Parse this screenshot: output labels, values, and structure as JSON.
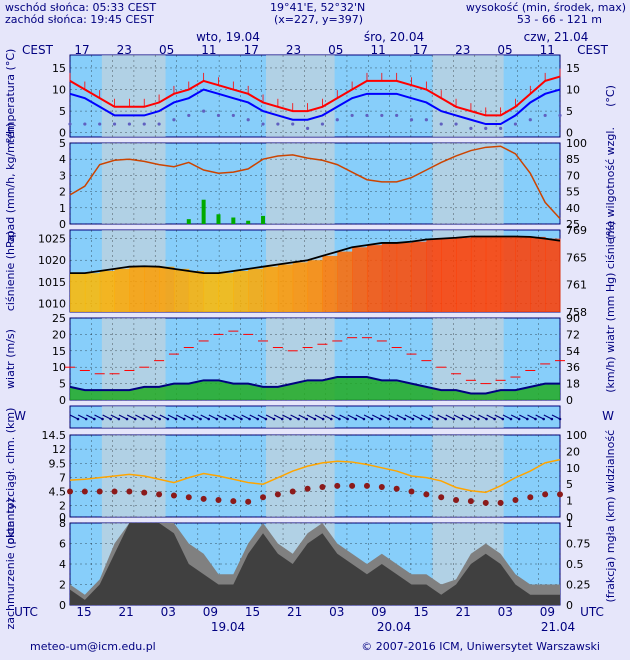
{
  "header": {
    "sunrise": "wschód słońca: 05:33 CEST",
    "sunset": "zachód słońca: 19:45 CEST",
    "coords": "19°41'E, 52°32'N",
    "grid": "(x=227, y=397)",
    "elev_title": "wysokość (min, środek, max)",
    "elev_values": "53 - 66 - 121 m"
  },
  "footer": {
    "email": "meteo-um@icm.edu.pl",
    "copyright": "© 2007-2016 ICM, Uniwersytet Warszawski"
  },
  "top_axis": {
    "tz": "CEST",
    "hours": [
      "17",
      "23",
      "05",
      "11",
      "17",
      "23",
      "05",
      "11",
      "17",
      "23",
      "05",
      "11"
    ],
    "days": [
      "wto, 19.04",
      "śro, 20.04",
      "czw, 21.04"
    ]
  },
  "bottom_axis": {
    "tz": "UTC",
    "hours": [
      "15",
      "21",
      "03",
      "09",
      "15",
      "21",
      "03",
      "09",
      "15",
      "21",
      "03",
      "09"
    ],
    "days": [
      "19.04",
      "20.04",
      "21.04"
    ]
  },
  "colors": {
    "panel_bg": "#87cefa",
    "night_band": "#d3d3d3",
    "axis_text": "#000080",
    "temp": "#ff0000",
    "dewpoint": "#0000ff",
    "humidity": "#cc4400",
    "precip": "#00aa00",
    "pressure": "#000000",
    "wind_avg": "#000080",
    "wind_gust": "#ff0000",
    "cloud": "#404040"
  },
  "chart_data": [
    {
      "id": "temperature",
      "type": "line",
      "ylabel_left": "temperatura (°C)",
      "ylabel_right": "(°C)",
      "yticks": [
        0,
        5,
        10,
        15
      ],
      "ylim": [
        -1,
        18
      ],
      "series": [
        {
          "values": [
            12,
            10,
            8,
            6,
            6,
            6,
            7,
            9,
            10,
            12,
            11,
            10,
            9,
            7,
            6,
            5,
            5,
            6,
            8,
            10,
            12,
            12,
            12,
            11,
            10,
            8,
            6,
            5,
            4,
            4,
            6,
            9,
            12,
            13
          ]
        },
        {
          "values": [
            9,
            8,
            6,
            4,
            4,
            4,
            5,
            7,
            8,
            10,
            9,
            8,
            7,
            5,
            4,
            3,
            3,
            4,
            6,
            8,
            9,
            9,
            9,
            8,
            7,
            5,
            4,
            3,
            2,
            2,
            4,
            7,
            9,
            10
          ]
        },
        {
          "values": [
            2,
            2,
            2,
            2,
            2,
            2,
            2,
            3,
            4,
            5,
            4,
            4,
            3,
            2,
            2,
            2,
            1,
            2,
            3,
            4,
            4,
            4,
            4,
            3,
            3,
            2,
            2,
            1,
            1,
            1,
            2,
            3,
            4,
            4
          ]
        }
      ]
    },
    {
      "id": "precipitation",
      "type": "bar",
      "ylabel_left": "opad (mm/h, kg/m²/h)",
      "ylabel_right": "(%) wilgotność wzgl.",
      "yticks": [
        0,
        1,
        2,
        3,
        4,
        5
      ],
      "yticks_right": [
        25,
        40,
        55,
        70,
        85,
        100
      ],
      "ylim": [
        0,
        5
      ],
      "series": [
        {
          "values": [
            0,
            0,
            0,
            0,
            0,
            0,
            0,
            0,
            0.3,
            1.5,
            0.6,
            0.4,
            0.2,
            0.5,
            0,
            0,
            0,
            0,
            0,
            0,
            0,
            0,
            0,
            0,
            0,
            0,
            0,
            0,
            0,
            0,
            0,
            0,
            0,
            0
          ]
        },
        {
          "values": [
            52,
            60,
            80,
            84,
            85,
            83,
            80,
            78,
            82,
            75,
            72,
            73,
            76,
            85,
            88,
            89,
            86,
            84,
            80,
            73,
            66,
            64,
            64,
            68,
            75,
            82,
            88,
            93,
            96,
            97,
            90,
            72,
            45,
            30
          ]
        }
      ]
    },
    {
      "id": "pressure",
      "type": "line",
      "ylabel_left": "ciśnienie (hPa)",
      "ylabel_right": "(mm Hg) ciśnienie",
      "yticks": [
        1010,
        1015,
        1020,
        1025
      ],
      "yticks_right": [
        758,
        761,
        765,
        769
      ],
      "ylim": [
        1008,
        1027
      ],
      "series": [
        {
          "values": [
            1017,
            1017,
            1017.5,
            1018,
            1018.5,
            1018.6,
            1018.5,
            1018,
            1017.5,
            1017,
            1017,
            1017.5,
            1018,
            1018.5,
            1019,
            1019.5,
            1020,
            1021,
            1022,
            1023,
            1023.5,
            1024,
            1024,
            1024.3,
            1024.8,
            1025,
            1025.2,
            1025.5,
            1025.5,
            1025.5,
            1025.5,
            1025.4,
            1025,
            1024.5
          ]
        }
      ]
    },
    {
      "id": "wind",
      "type": "area",
      "ylabel_left": "wiatr (m/s)",
      "ylabel_right": "(km/h) wiatr",
      "yticks": [
        0,
        5,
        10,
        15,
        20,
        25
      ],
      "yticks_right": [
        0,
        18,
        36,
        54,
        72,
        90
      ],
      "ylim": [
        0,
        25
      ],
      "series": [
        {
          "values": [
            4,
            3,
            3,
            3,
            3,
            4,
            4,
            5,
            5,
            6,
            6,
            5,
            5,
            4,
            4,
            5,
            6,
            6,
            7,
            7,
            7,
            6,
            6,
            5,
            4,
            3,
            3,
            2,
            2,
            3,
            3,
            4,
            5,
            5
          ]
        },
        {
          "values": [
            10,
            9,
            8,
            8,
            9,
            10,
            12,
            14,
            16,
            18,
            20,
            21,
            20,
            18,
            16,
            15,
            16,
            17,
            18,
            19,
            19,
            18,
            16,
            14,
            12,
            10,
            8,
            6,
            5,
            6,
            7,
            9,
            11,
            12
          ]
        }
      ]
    },
    {
      "id": "wind_direction",
      "type": "line",
      "ylabel_left": "W S N E",
      "ylabel_right": "W S N E"
    },
    {
      "id": "visibility",
      "type": "scatter",
      "ylabel_left": "pion. rozciągł. chm. (km)",
      "ylabel_right": "(km) widzialność",
      "yticks": [
        0,
        2.0,
        4.5,
        7.0,
        9.5,
        12.0,
        14.5
      ],
      "yticks_right": [
        0,
        1,
        5,
        10,
        20,
        100
      ],
      "ylim": [
        0,
        14.5
      ],
      "series": [
        {
          "values": [
            4.5,
            4.5,
            4.5,
            4.5,
            4.5,
            4.3,
            4.0,
            3.8,
            3.5,
            3.2,
            3.0,
            2.8,
            2.7,
            3.5,
            4.0,
            4.5,
            5.0,
            5.3,
            5.5,
            5.5,
            5.5,
            5.3,
            5.0,
            4.5,
            4.0,
            3.5,
            3.0,
            2.8,
            2.5,
            2.5,
            3.0,
            3.5,
            4.0,
            4.0
          ]
        },
        {
          "values": [
            4.5,
            4.6,
            4.8,
            5.0,
            5.2,
            5.0,
            4.6,
            4.2,
            4.8,
            5.3,
            5.0,
            4.6,
            4.2,
            4.0,
            4.8,
            5.6,
            6.2,
            6.6,
            6.8,
            6.7,
            6.4,
            6.0,
            5.6,
            5.0,
            4.8,
            4.4,
            3.6,
            3.2,
            3.0,
            3.8,
            4.8,
            5.6,
            6.6,
            7.0
          ]
        }
      ]
    },
    {
      "id": "cloud",
      "type": "area",
      "ylabel_left": "zachmurzenie (oktanty)",
      "ylabel_right": "(frakcja) mgła",
      "yticks": [
        0,
        2,
        4,
        6,
        8
      ],
      "yticks_right": [
        0,
        0.25,
        0.5,
        0.75,
        1
      ],
      "ylim": [
        0,
        8
      ],
      "series": [
        {
          "values": [
            1.5,
            0.5,
            2,
            5,
            8,
            8,
            8,
            7,
            4,
            3,
            2,
            2,
            5,
            7,
            5,
            4,
            6,
            7,
            5,
            4,
            3,
            4,
            3,
            2,
            2,
            1,
            2,
            4,
            5,
            4,
            2,
            1,
            1,
            1
          ]
        },
        {
          "values": [
            2,
            1,
            2.5,
            6,
            8,
            8,
            8,
            8,
            6,
            5,
            3,
            3,
            6,
            8,
            6,
            5,
            7,
            8,
            6,
            5,
            4,
            5,
            4,
            3,
            3,
            2,
            2.5,
            5,
            6,
            5,
            3,
            2,
            2,
            2
          ]
        }
      ]
    }
  ]
}
